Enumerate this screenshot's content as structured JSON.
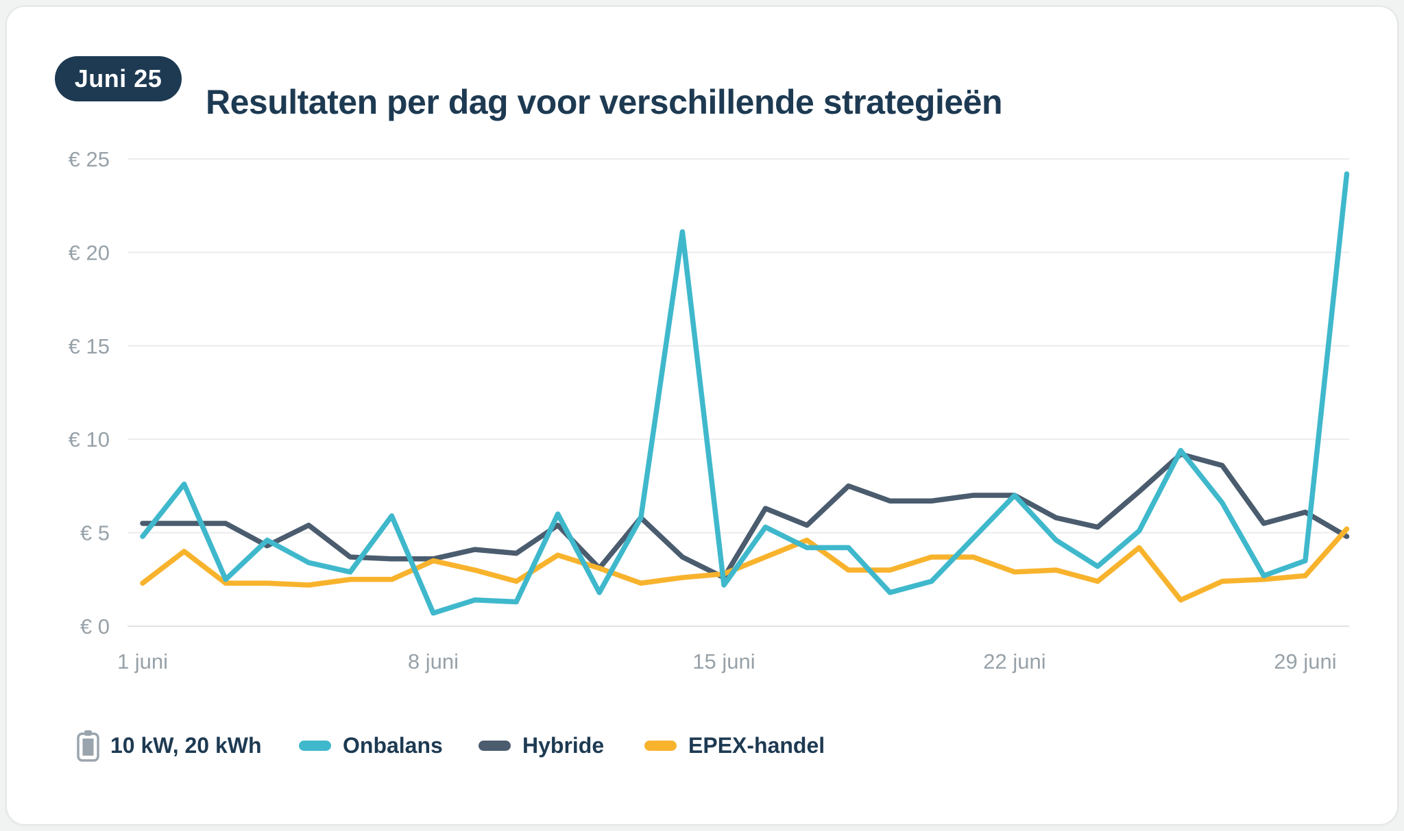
{
  "page": {
    "badge": "Juni 25"
  },
  "legend": {
    "battery_label": "10 kW, 20 kWh",
    "battery_icon": "battery-icon",
    "position": "bottom"
  },
  "colors": {
    "accent_navy": "#1d3a52",
    "card_background": "#ffffff",
    "page_background": "#f1f2f2",
    "axis_text": "#97a1a8",
    "gridline": "#ececee",
    "zero_line": "#dfe2e4",
    "onbalans": "#3fb8cc",
    "hybride": "#4a5c6e",
    "epex": "#f8b32d"
  },
  "chart_data": {
    "type": "line",
    "title": "Resultaten per dag voor verschillende strategieën",
    "subtitle_badge": "Juni 25",
    "xlabel": "",
    "ylabel": "",
    "ylim": [
      0,
      25
    ],
    "grid": "horizontal",
    "legend_position": "bottom",
    "x": [
      1,
      2,
      3,
      4,
      5,
      6,
      7,
      8,
      9,
      10,
      11,
      12,
      13,
      14,
      15,
      16,
      17,
      18,
      19,
      20,
      21,
      22,
      23,
      24,
      25,
      26,
      27,
      28,
      29,
      30
    ],
    "x_unit": "juni",
    "yticks": [
      {
        "value": 0,
        "label": "€ 0"
      },
      {
        "value": 5,
        "label": "€ 5"
      },
      {
        "value": 10,
        "label": "€ 10"
      },
      {
        "value": 15,
        "label": "€ 15"
      },
      {
        "value": 20,
        "label": "€ 20"
      },
      {
        "value": 25,
        "label": "€ 25"
      }
    ],
    "xticks": [
      {
        "day": 1,
        "label": "1 juni"
      },
      {
        "day": 8,
        "label": "8 juni"
      },
      {
        "day": 15,
        "label": "15 juni"
      },
      {
        "day": 22,
        "label": "22 juni"
      },
      {
        "day": 29,
        "label": "29 juni"
      }
    ],
    "series": [
      {
        "name": "Onbalans",
        "color": "#3fb8cc",
        "z": 2,
        "values": [
          4.8,
          7.6,
          2.5,
          4.6,
          3.4,
          2.9,
          5.9,
          0.7,
          1.4,
          1.3,
          6.0,
          1.8,
          5.8,
          21.1,
          2.2,
          5.3,
          4.2,
          4.2,
          1.8,
          2.4,
          4.7,
          7.0,
          4.6,
          3.2,
          5.1,
          9.4,
          6.6,
          2.7,
          3.5,
          24.2
        ]
      },
      {
        "name": "Hybride",
        "color": "#4a5c6e",
        "z": 0,
        "values": [
          5.5,
          5.5,
          5.5,
          4.3,
          5.4,
          3.7,
          3.6,
          3.6,
          4.1,
          3.9,
          5.4,
          3.1,
          5.8,
          3.7,
          2.6,
          6.3,
          5.4,
          7.5,
          6.7,
          6.7,
          7.0,
          7.0,
          5.8,
          5.3,
          7.2,
          9.2,
          8.6,
          5.5,
          6.1,
          4.8
        ]
      },
      {
        "name": "EPEX-handel",
        "color": "#f8b32d",
        "z": 1,
        "values": [
          2.3,
          4.0,
          2.3,
          2.3,
          2.2,
          2.5,
          2.5,
          3.5,
          3.0,
          2.4,
          3.8,
          3.1,
          2.3,
          2.6,
          2.8,
          3.7,
          4.6,
          3.0,
          3.0,
          3.7,
          3.7,
          2.9,
          3.0,
          2.4,
          4.2,
          1.4,
          2.4,
          2.5,
          2.7,
          5.2
        ]
      }
    ]
  }
}
